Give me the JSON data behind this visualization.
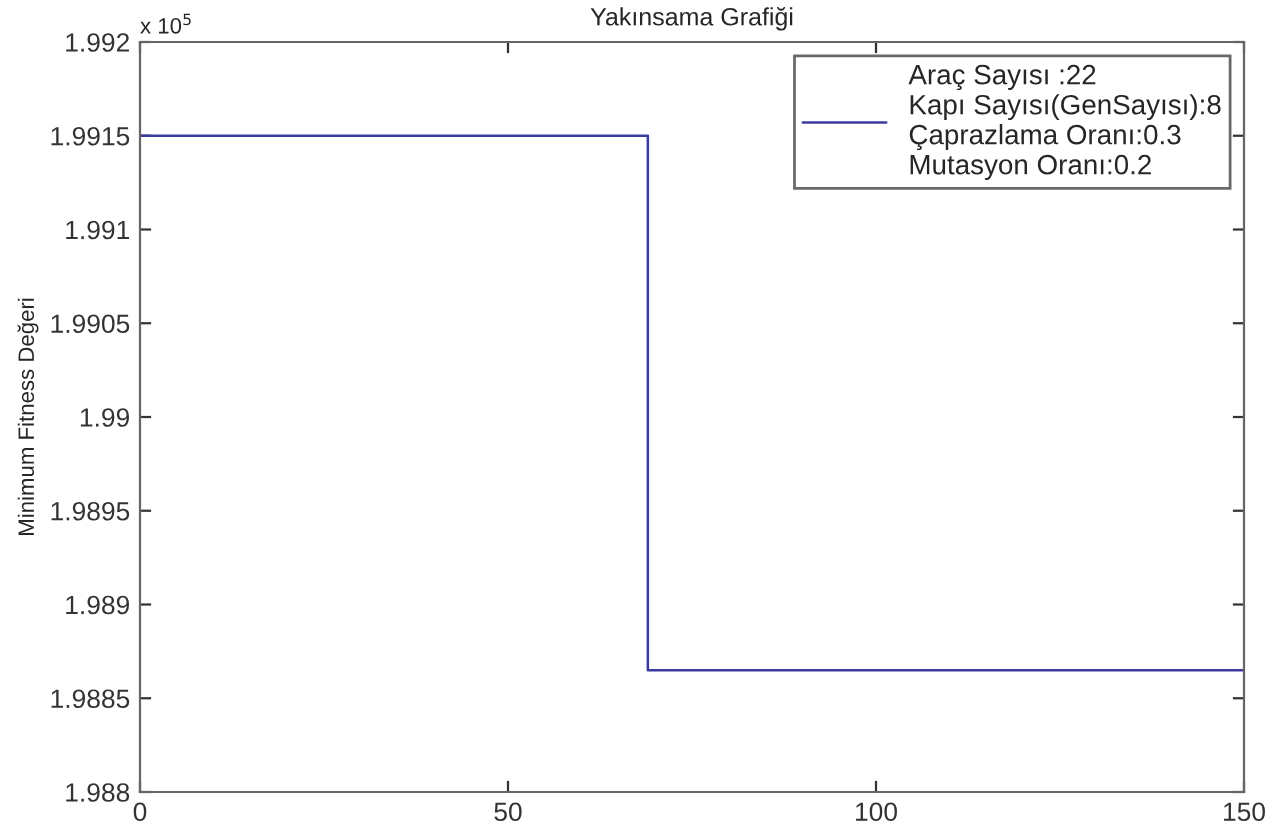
{
  "chart_data": {
    "type": "step",
    "title": "Yakınsama Grafiği",
    "ylabel": "Minimum Fitness Değeri",
    "annotations": [
      "x 10$^{5}$"
    ],
    "x": [
      0,
      69,
      150
    ],
    "series": [
      {
        "name": "Araç Sayısı :22\nKapı Sayısı(GenSayısı):8\nÇaprazlama Oranı:0.3\nMutasyon Oranı:0.2",
        "color": "#3a3aa0",
        "values": [
          1.9915,
          1.98865,
          1.98865
        ]
      }
    ],
    "xlim": [
      0,
      150
    ],
    "xticks": [
      0,
      50,
      100,
      150
    ],
    "ylim": [
      1.988,
      1.992
    ],
    "yticks": [
      1.988,
      1.9885,
      1.989,
      1.9895,
      1.99,
      1.9905,
      1.991,
      1.9915,
      1.992
    ],
    "grid": false,
    "legend": "top right",
    "line_style": "solid",
    "marker": "none"
  }
}
